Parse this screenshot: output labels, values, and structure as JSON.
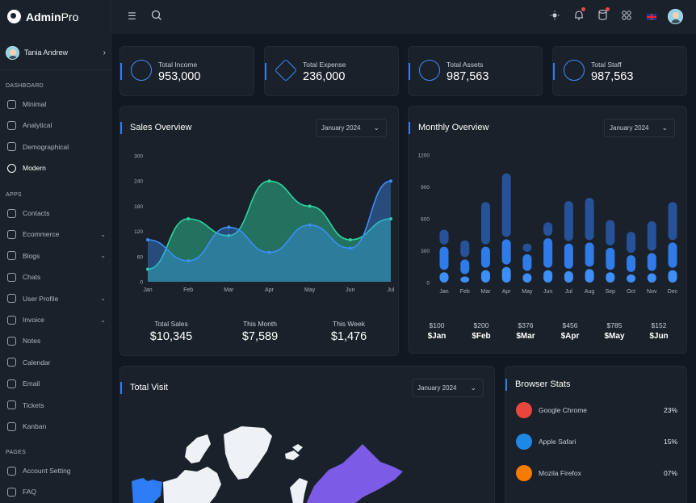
{
  "app": {
    "brand_bold": "Admin",
    "brand_light": "Pro"
  },
  "user": {
    "name": "Tania Andrew"
  },
  "sidebar": {
    "sections": [
      {
        "title": "DASHBOARD",
        "items": [
          {
            "label": "Minimal",
            "has_caret": false,
            "active": false
          },
          {
            "label": "Analytical",
            "has_caret": false,
            "active": false
          },
          {
            "label": "Demographical",
            "has_caret": false,
            "active": false
          },
          {
            "label": "Modern",
            "has_caret": false,
            "active": true
          }
        ]
      },
      {
        "title": "APPS",
        "items": [
          {
            "label": "Contacts",
            "has_caret": false
          },
          {
            "label": "Ecommerce",
            "has_caret": true
          },
          {
            "label": "Blogs",
            "has_caret": true
          },
          {
            "label": "Chats",
            "has_caret": false
          },
          {
            "label": "User Profile",
            "has_caret": true
          },
          {
            "label": "Invoice",
            "has_caret": true
          },
          {
            "label": "Notes",
            "has_caret": false
          },
          {
            "label": "Calendar",
            "has_caret": false
          },
          {
            "label": "Email",
            "has_caret": false
          },
          {
            "label": "Tickets",
            "has_caret": false
          },
          {
            "label": "Kanban",
            "has_caret": false
          }
        ]
      },
      {
        "title": "PAGES",
        "items": [
          {
            "label": "Account Setting",
            "has_caret": false
          },
          {
            "label": "FAQ",
            "has_caret": false
          }
        ]
      }
    ]
  },
  "header": {
    "icons": [
      "menu-icon",
      "search-icon",
      "theme-icon",
      "bell-icon",
      "database-icon",
      "apps-icon",
      "flag-uk-icon"
    ]
  },
  "stats": [
    {
      "label": "Total Income",
      "value": "953,000",
      "icon": "income-icon"
    },
    {
      "label": "Total Expense",
      "value": "236,000",
      "icon": "layers-icon"
    },
    {
      "label": "Total Assets",
      "value": "987,563",
      "icon": "assets-icon"
    },
    {
      "label": "Total Staff",
      "value": "987,563",
      "icon": "staff-icon"
    }
  ],
  "sales_overview": {
    "title": "Sales Overview",
    "select": "January 2024",
    "metrics": [
      {
        "label": "Total Sales",
        "value": "$10,345"
      },
      {
        "label": "This Month",
        "value": "$7,589"
      },
      {
        "label": "This Week",
        "value": "$1,476"
      }
    ]
  },
  "monthly_overview": {
    "title": "Monthly Overview",
    "select": "January 2024",
    "prices": [
      {
        "price": "$100",
        "month": "$Jan"
      },
      {
        "price": "$200",
        "month": "$Feb"
      },
      {
        "price": "$376",
        "month": "$Mar"
      },
      {
        "price": "$456",
        "month": "$Apr"
      },
      {
        "price": "$785",
        "month": "$May"
      },
      {
        "price": "$152",
        "month": "$Jun"
      }
    ]
  },
  "total_visit": {
    "title": "Total Visit",
    "select": "January 2024"
  },
  "browser_stats": {
    "title": "Browser Stats",
    "rows": [
      {
        "name": "Google Chrome",
        "pct": "23%",
        "icon": "chrome-icon",
        "color": "#e8453c"
      },
      {
        "name": "Apple Safari",
        "pct": "15%",
        "icon": "safari-icon",
        "color": "#1e88e5"
      },
      {
        "name": "Mozila Firefox",
        "pct": "07%",
        "icon": "firefox-icon",
        "color": "#f57c00"
      }
    ]
  },
  "chart_data": [
    {
      "type": "area",
      "categories": [
        "Jan",
        "Feb",
        "Mar",
        "Apr",
        "May",
        "Jun",
        "Jul"
      ],
      "x": [
        0,
        0.5,
        1,
        1.5,
        2,
        2.5,
        3,
        3.5,
        4,
        4.5,
        5,
        5.5,
        6
      ],
      "ylim": [
        0,
        300
      ],
      "yticks": [
        0,
        60,
        120,
        180,
        240,
        300
      ],
      "series": [
        {
          "color": "#2dd4a0",
          "values": [
            30,
            150,
            110,
            240,
            180,
            100,
            150
          ]
        },
        {
          "color": "#3d8ef8",
          "values": [
            100,
            50,
            130,
            70,
            135,
            80,
            240
          ]
        }
      ],
      "grid": false
    },
    {
      "type": "bar",
      "categories": [
        "Jan",
        "Feb",
        "Mar",
        "Apr",
        "May",
        "Jun",
        "Jul",
        "Aug",
        "Sep",
        "Oct",
        "Nov",
        "Dec"
      ],
      "ylim": [
        0,
        1200
      ],
      "yticks": [
        0,
        300,
        600,
        900,
        1200
      ],
      "series": [
        {
          "color": "#3d8ef8",
          "values": [
            120,
            80,
            140,
            170,
            110,
            140,
            130,
            150,
            120,
            100,
            110,
            140
          ]
        },
        {
          "color": "#2f7be8",
          "values": [
            240,
            160,
            220,
            260,
            180,
            300,
            260,
            250,
            230,
            180,
            190,
            260
          ]
        },
        {
          "color": "#26529a",
          "values": [
            160,
            180,
            420,
            620,
            100,
            150,
            400,
            420,
            260,
            220,
            300,
            380
          ]
        }
      ],
      "grid": false
    }
  ]
}
